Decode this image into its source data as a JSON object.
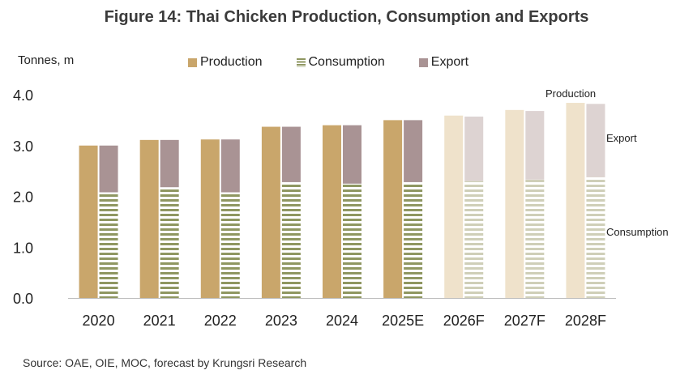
{
  "chart_data": {
    "type": "bar",
    "title": "Figure 14: Thai Chicken Production, Consumption and Exports",
    "ylabel": "Tonnes, m",
    "xlabel": "",
    "ylim": [
      0,
      4.0
    ],
    "yticks": [
      "0.0",
      "1.0",
      "2.0",
      "3.0",
      "4.0"
    ],
    "categories": [
      "2020",
      "2021",
      "2022",
      "2023",
      "2024",
      "2025E",
      "2026F",
      "2027F",
      "2028F"
    ],
    "forecast_start_index": 6,
    "series": [
      {
        "name": "Production",
        "values": [
          3.0,
          3.11,
          3.12,
          3.37,
          3.4,
          3.5,
          3.59,
          3.7,
          3.84
        ]
      },
      {
        "name": "Consumption",
        "values": [
          2.08,
          2.18,
          2.08,
          2.28,
          2.25,
          2.28,
          2.3,
          2.33,
          2.38
        ]
      },
      {
        "name": "Export",
        "values": [
          0.92,
          0.93,
          1.04,
          1.09,
          1.15,
          1.22,
          1.27,
          1.35,
          1.44
        ]
      }
    ],
    "annotations": [
      "Production",
      "Export",
      "Consumption"
    ],
    "colors": {
      "production": "#c9a66b",
      "production_forecast": "#efe2cb",
      "consumption": "#8f9761",
      "consumption_forecast": "#cfcfb8",
      "export": "#a99394",
      "export_forecast": "#ddd3d2"
    }
  },
  "legend": [
    "Production",
    "Consumption",
    "Export"
  ],
  "source": "Source: OAE, OIE, MOC, forecast by Krungsri Research"
}
